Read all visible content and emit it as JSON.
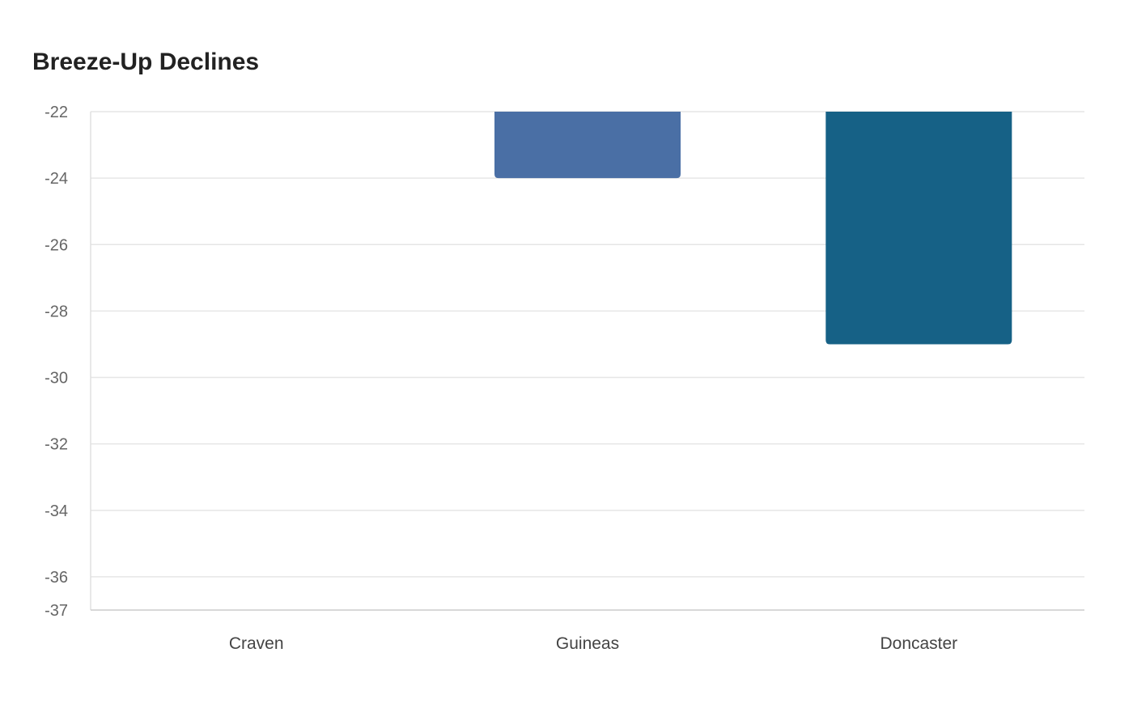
{
  "chart_data": {
    "type": "bar",
    "title": "Breeze-Up Declines",
    "categories": [
      "Craven",
      "Guineas",
      "Doncaster"
    ],
    "values": [
      -22,
      -24,
      -29
    ],
    "colors": [
      "#4a6fa5",
      "#4a6fa5",
      "#166186"
    ],
    "ylim": [
      -37,
      -22
    ],
    "yticks": [
      -22,
      -24,
      -26,
      -28,
      -30,
      -32,
      -34,
      -36,
      -37
    ],
    "ytick_labels": [
      "-22",
      "-24",
      "-26",
      "-28",
      "-30",
      "-32",
      "-34",
      "-36",
      "-37"
    ],
    "grid": true,
    "legend": "none"
  }
}
